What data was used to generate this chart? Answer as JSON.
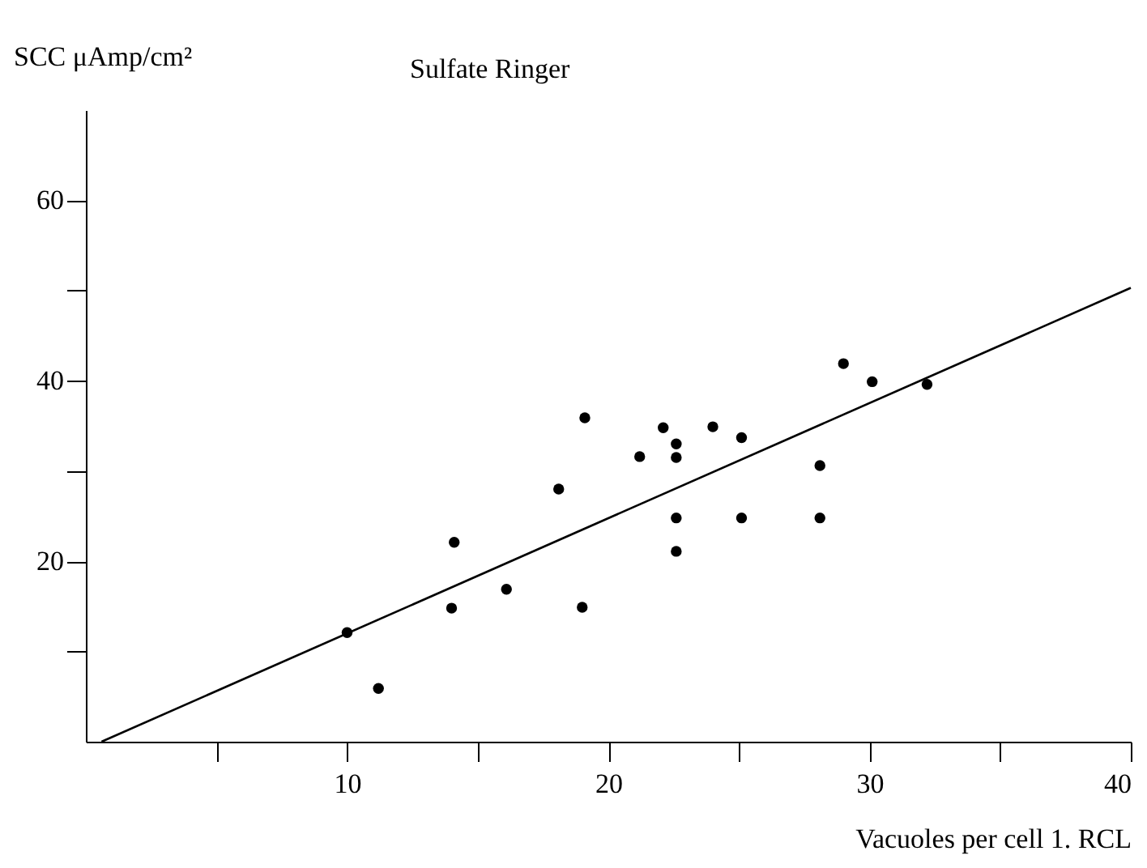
{
  "chart_data": {
    "type": "scatter",
    "title": "Sulfate Ringer",
    "xlabel": "Vacuoles per cell 1. RCL",
    "ylabel": "SCC μAmp/cm²",
    "xlim": [
      0,
      40
    ],
    "ylim": [
      0,
      70
    ],
    "xticks": [
      {
        "value": 5,
        "label": null
      },
      10,
      {
        "value": 15,
        "label": null
      },
      20,
      {
        "value": 25,
        "label": null
      },
      30,
      {
        "value": 35,
        "label": null
      },
      40
    ],
    "yticks": [
      {
        "value": 10,
        "label": null
      },
      20,
      {
        "value": 30,
        "label": null
      },
      40,
      {
        "value": 50,
        "label": null
      },
      60
    ],
    "grid": false,
    "marker": "circle",
    "series": [
      {
        "color": "#000000",
        "x": [
          10.0,
          11.2,
          14.0,
          14.1,
          16.1,
          18.1,
          19.0,
          19.1,
          21.2,
          22.1,
          22.6,
          22.6,
          22.6,
          22.6,
          24.0,
          25.1,
          25.1,
          28.1,
          28.1,
          29.0,
          30.1,
          32.2
        ],
        "values": [
          12.1,
          5.9,
          14.8,
          22.1,
          16.9,
          28.0,
          14.9,
          35.9,
          31.6,
          34.8,
          33.0,
          31.5,
          24.8,
          21.1,
          34.9,
          33.7,
          24.8,
          30.6,
          24.8,
          41.9,
          39.9,
          39.6
        ]
      },
      {
        "type": "line",
        "color": "#000000",
        "line_style": "solid",
        "marker": "none",
        "x": [
          0.6,
          40
        ],
        "values": [
          0,
          50.3
        ]
      }
    ]
  }
}
